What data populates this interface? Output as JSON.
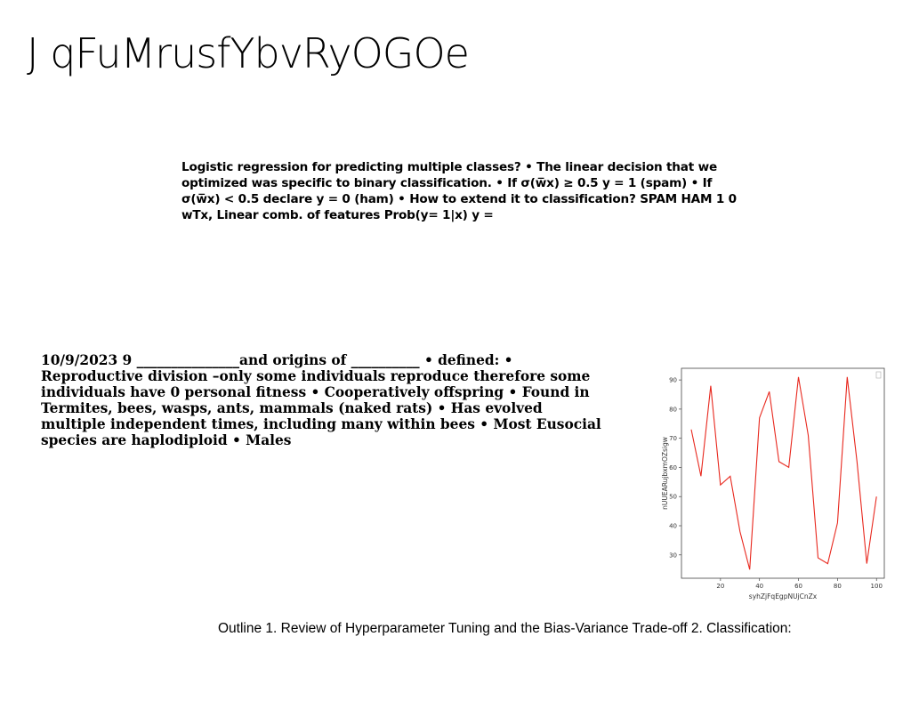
{
  "slide": {
    "title": "J qFuMrusfYbvRyOGOe",
    "paragraph1": "Logistic regression for predicting multiple classes? • The linear decision that we optimized was specific to binary classification. • If σ(w̅x) ≥ 0.5 y = 1 (spam) • If σ(w̅x) < 0.5 declare y = 0 (ham) • How to extend it to classification? SPAM HAM 1 0 wTx, Linear comb. of features Prob(y= 1|x) y =",
    "paragraph2": "10/9/2023 9 _______________and origins of __________ • defined: • Reproductive division –only some individuals reproduce therefore some individuals have 0 personal fitness • Cooperatively offspring • Found in Termites, bees, wasps, ants, mammals (naked rats) • Has evolved multiple independent times, including many within bees • Most Eusocial species are haplodiploid • Males",
    "caption": "Outline 1. Review of Hyperparameter Tuning and the Bias-Variance Trade-off 2. Classification:"
  },
  "chart_data": {
    "type": "line",
    "title": "",
    "xlabel": "syhZjFqEgpNUjCnZx",
    "ylabel": "nUUEARujbxmOZsigw",
    "xlim": [
      0,
      104
    ],
    "ylim": [
      22,
      94
    ],
    "xticks": [
      20,
      40,
      60,
      80,
      100
    ],
    "yticks": [
      30,
      40,
      50,
      60,
      70,
      80,
      90
    ],
    "grid": false,
    "legend": "top-right",
    "series": [
      {
        "color": "#e8281e",
        "x": [
          5,
          10,
          15,
          20,
          25,
          30,
          35,
          40,
          45,
          50,
          55,
          60,
          65,
          70,
          75,
          80,
          85,
          90,
          95,
          100
        ],
        "y": [
          73,
          57,
          88,
          54,
          57,
          38,
          25,
          77,
          86,
          62,
          60,
          91,
          71,
          29,
          27,
          41,
          91,
          62,
          27,
          50
        ]
      }
    ]
  }
}
